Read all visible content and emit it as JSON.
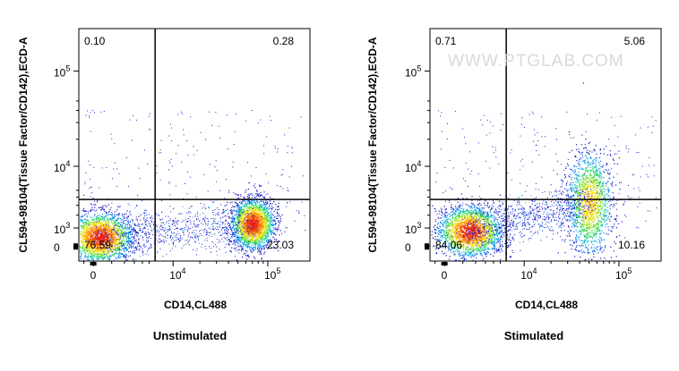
{
  "watermark": "WWW.PTGLAB.COM",
  "chart_data": [
    {
      "type": "scatter",
      "subtype": "flow-cytometry-density-dot-plot",
      "caption": "Unstimulated",
      "xlabel": "CD14,CL488",
      "ylabel": "CL594-98104(Tissue Factor/CD142),ECD-A",
      "x_ticks": [
        {
          "base": "0",
          "exp": ""
        },
        {
          "base": "10",
          "exp": "4"
        },
        {
          "base": "10",
          "exp": "5"
        }
      ],
      "y_ticks": [
        {
          "base": "0",
          "exp": ""
        },
        {
          "base": "10",
          "exp": "3"
        },
        {
          "base": "10",
          "exp": "4"
        },
        {
          "base": "10",
          "exp": "5"
        }
      ],
      "x_scale": "biexponential",
      "y_scale": "biexponential",
      "quadrant_gate": {
        "x": 6000,
        "y": 3700
      },
      "quadrants": [
        {
          "position": "top-left",
          "value": "0.10"
        },
        {
          "position": "top-right",
          "value": "0.28"
        },
        {
          "position": "bottom-left",
          "value": "76.59"
        },
        {
          "position": "bottom-right",
          "value": "23.03"
        }
      ],
      "populations": [
        {
          "x_center": 300,
          "y_center": 450,
          "density": "high"
        },
        {
          "x_center": 70000,
          "y_center": 1300,
          "density": "high"
        }
      ]
    },
    {
      "type": "scatter",
      "subtype": "flow-cytometry-density-dot-plot",
      "caption": "Stimulated",
      "xlabel": "CD14,CL488",
      "ylabel": "CL594-98104(Tissue Factor/CD142),ECD-A",
      "x_ticks": [
        {
          "base": "0",
          "exp": ""
        },
        {
          "base": "10",
          "exp": "4"
        },
        {
          "base": "10",
          "exp": "5"
        }
      ],
      "y_ticks": [
        {
          "base": "0",
          "exp": ""
        },
        {
          "base": "10",
          "exp": "3"
        },
        {
          "base": "10",
          "exp": "4"
        },
        {
          "base": "10",
          "exp": "5"
        }
      ],
      "x_scale": "biexponential",
      "y_scale": "biexponential",
      "quadrant_gate": {
        "x": 6000,
        "y": 3700
      },
      "quadrants": [
        {
          "position": "top-left",
          "value": "0.71"
        },
        {
          "position": "top-right",
          "value": "5.06"
        },
        {
          "position": "bottom-left",
          "value": "84.06"
        },
        {
          "position": "bottom-right",
          "value": "10.16"
        }
      ],
      "populations": [
        {
          "x_center": 1500,
          "y_center": 800,
          "density": "high"
        },
        {
          "x_center": 50000,
          "y_center": 3300,
          "density": "medium"
        }
      ]
    }
  ]
}
